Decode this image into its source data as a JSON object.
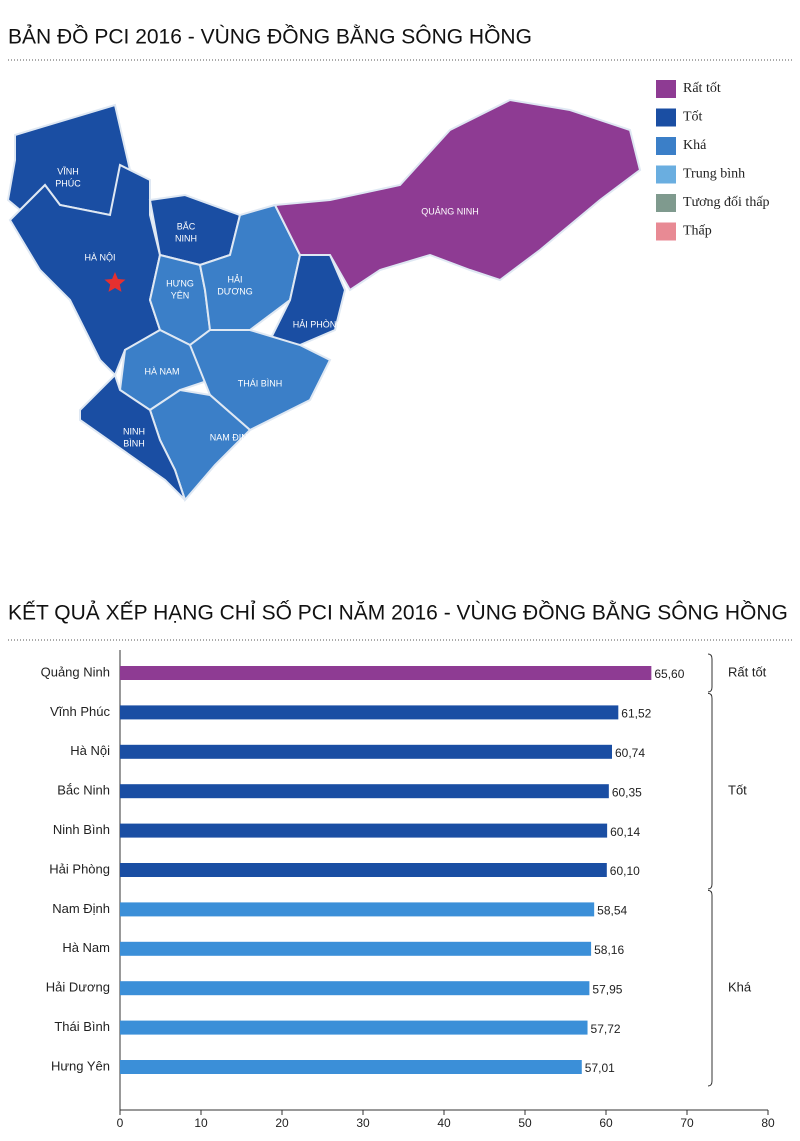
{
  "map": {
    "title": "BẢN ĐỒ PCI 2016 - VÙNG ĐỒNG BẰNG SÔNG HỒNG",
    "legend": [
      {
        "label": "Rất tốt",
        "color": "#8e3b93"
      },
      {
        "label": "Tốt",
        "color": "#1a4ea3"
      },
      {
        "label": "Khá",
        "color": "#3b7fc8"
      },
      {
        "label": "Trung bình",
        "color": "#6aaee0"
      },
      {
        "label": "Tương đối thấp",
        "color": "#7f9a8e"
      },
      {
        "label": "Thấp",
        "color": "#e88a94"
      }
    ],
    "regions": [
      {
        "lines": [
          "VĨNH",
          "PHÚC"
        ],
        "color": "#1a4ea3"
      },
      {
        "lines": [
          "HÀ NỘI"
        ],
        "color": "#1a4ea3"
      },
      {
        "lines": [
          "BẮC",
          "NINH"
        ],
        "color": "#1a4ea3"
      },
      {
        "lines": [
          "HƯNG",
          "YÊN"
        ],
        "color": "#3b7fc8"
      },
      {
        "lines": [
          "HẢI",
          "DƯƠNG"
        ],
        "color": "#3b7fc8"
      },
      {
        "lines": [
          "HẢI PHÒNG"
        ],
        "color": "#1a4ea3"
      },
      {
        "lines": [
          "HÀ NAM"
        ],
        "color": "#3b7fc8"
      },
      {
        "lines": [
          "THÁI BÌNH"
        ],
        "color": "#3b7fc8"
      },
      {
        "lines": [
          "NAM ĐỊNH"
        ],
        "color": "#3b7fc8"
      },
      {
        "lines": [
          "NINH",
          "BÌNH"
        ],
        "color": "#1a4ea3"
      },
      {
        "lines": [
          "QUẢNG NINH"
        ],
        "color": "#8e3b93"
      }
    ]
  },
  "chart_data": {
    "type": "hbar",
    "title": "KẾT QUẢ XẾP HẠNG CHỈ SỐ PCI NĂM 2016  - VÙNG ĐỒNG BẰNG SÔNG HỒNG",
    "categories": [
      "Quảng Ninh",
      "Vĩnh Phúc",
      "Hà Nội",
      "Bắc Ninh",
      "Ninh Bình",
      "Hải Phòng",
      "Nam Định",
      "Hà Nam",
      "Hải Dương",
      "Thái Bình",
      "Hưng Yên"
    ],
    "values": [
      65.6,
      61.52,
      60.74,
      60.35,
      60.14,
      60.1,
      58.54,
      58.16,
      57.95,
      57.72,
      57.01
    ],
    "value_labels": [
      "65,60",
      "61,52",
      "60,74",
      "60,35",
      "60,14",
      "60,10",
      "58,54",
      "58,16",
      "57,95",
      "57,72",
      "57,01"
    ],
    "colors": [
      "#8e3b93",
      "#1a4ea3",
      "#1a4ea3",
      "#1a4ea3",
      "#1a4ea3",
      "#1a4ea3",
      "#3b8fd8",
      "#3b8fd8",
      "#3b8fd8",
      "#3b8fd8",
      "#3b8fd8"
    ],
    "groups": [
      {
        "label": "Rất tốt",
        "categories": [
          0
        ]
      },
      {
        "label": "Tốt",
        "categories": [
          1,
          2,
          3,
          4,
          5
        ]
      },
      {
        "label": "Khá",
        "categories": [
          6,
          7,
          8,
          9,
          10
        ]
      }
    ],
    "xlim": [
      0,
      80
    ],
    "xticks": [
      0,
      10,
      20,
      30,
      40,
      50,
      60,
      70,
      80
    ]
  }
}
